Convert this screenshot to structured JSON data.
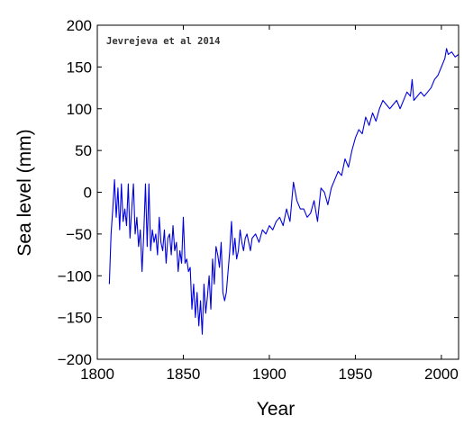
{
  "chart_data": {
    "type": "line",
    "title": "",
    "annotation": "Jevrejeva et al 2014",
    "xlabel": "Year",
    "ylabel": "Sea level (mm)",
    "xlim": [
      1800,
      2010
    ],
    "ylim": [
      -200,
      200
    ],
    "x_ticks": [
      1800,
      1850,
      1900,
      1950,
      2000
    ],
    "y_ticks": [
      -200,
      -150,
      -100,
      -50,
      0,
      50,
      100,
      150,
      200
    ],
    "grid": false,
    "line_color": "#0000dd",
    "series": [
      {
        "name": "",
        "x": [
          1807,
          1808,
          1809,
          1810,
          1811,
          1812,
          1813,
          1814,
          1815,
          1816,
          1817,
          1818,
          1819,
          1820,
          1821,
          1822,
          1823,
          1824,
          1825,
          1826,
          1827,
          1828,
          1829,
          1830,
          1831,
          1832,
          1833,
          1834,
          1835,
          1836,
          1837,
          1838,
          1839,
          1840,
          1841,
          1842,
          1843,
          1844,
          1845,
          1846,
          1847,
          1848,
          1849,
          1850,
          1851,
          1852,
          1853,
          1854,
          1855,
          1856,
          1857,
          1858,
          1859,
          1860,
          1861,
          1862,
          1863,
          1864,
          1865,
          1866,
          1867,
          1868,
          1869,
          1870,
          1871,
          1872,
          1873,
          1874,
          1875,
          1876,
          1877,
          1878,
          1879,
          1880,
          1881,
          1882,
          1883,
          1884,
          1885,
          1886,
          1887,
          1888,
          1889,
          1890,
          1892,
          1894,
          1896,
          1898,
          1900,
          1902,
          1904,
          1906,
          1908,
          1910,
          1912,
          1914,
          1916,
          1918,
          1920,
          1922,
          1924,
          1926,
          1928,
          1930,
          1932,
          1934,
          1936,
          1938,
          1940,
          1942,
          1944,
          1946,
          1948,
          1950,
          1952,
          1954,
          1956,
          1958,
          1960,
          1962,
          1964,
          1966,
          1968,
          1970,
          1972,
          1974,
          1976,
          1978,
          1980,
          1982,
          1983,
          1984,
          1986,
          1988,
          1990,
          1992,
          1994,
          1996,
          1998,
          2000,
          2002,
          2003,
          2004,
          2006,
          2008,
          2010
        ],
        "y": [
          -110,
          -50,
          -20,
          15,
          -30,
          5,
          -45,
          10,
          -35,
          -20,
          -40,
          10,
          -55,
          -20,
          10,
          -50,
          -30,
          -65,
          -45,
          -95,
          -50,
          10,
          -65,
          10,
          -70,
          -45,
          -60,
          -50,
          -75,
          -30,
          -60,
          -70,
          -45,
          -85,
          -55,
          -50,
          -75,
          -40,
          -70,
          -60,
          -95,
          -70,
          -85,
          -30,
          -85,
          -80,
          -95,
          -90,
          -140,
          -110,
          -150,
          -120,
          -160,
          -130,
          -170,
          -110,
          -145,
          -125,
          -100,
          -140,
          -80,
          -110,
          -65,
          -75,
          -90,
          -60,
          -120,
          -130,
          -120,
          -95,
          -70,
          -35,
          -75,
          -55,
          -80,
          -70,
          -45,
          -60,
          -70,
          -55,
          -50,
          -60,
          -70,
          -55,
          -50,
          -60,
          -45,
          -50,
          -40,
          -45,
          -35,
          -30,
          -40,
          -20,
          -35,
          12,
          -10,
          -20,
          -20,
          -30,
          -25,
          -10,
          -35,
          5,
          0,
          -15,
          5,
          15,
          25,
          20,
          40,
          30,
          50,
          65,
          75,
          70,
          90,
          80,
          95,
          85,
          100,
          110,
          105,
          100,
          105,
          110,
          100,
          110,
          120,
          115,
          135,
          110,
          115,
          120,
          115,
          120,
          125,
          135,
          140,
          150,
          160,
          172,
          165,
          168,
          162,
          165
        ]
      }
    ]
  }
}
